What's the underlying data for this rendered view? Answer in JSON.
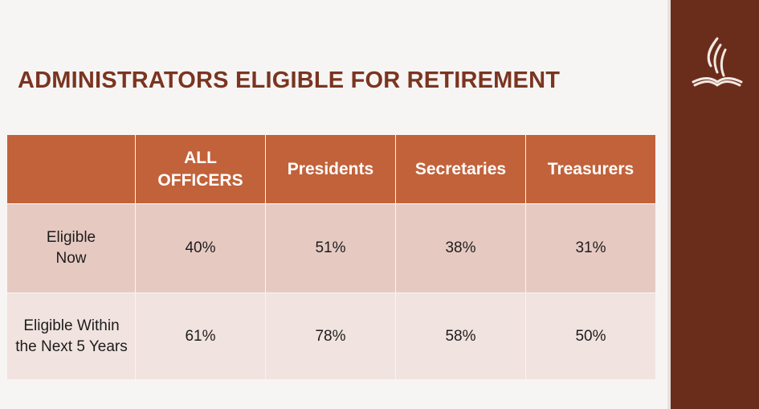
{
  "slide": {
    "title": "ADMINISTRATORS ELIGIBLE FOR RETIREMENT",
    "brand_color": "#6b2d1b",
    "header_color": "#c2623a",
    "row_a_color": "#e6cac2",
    "row_b_color": "#f1e3df",
    "logo_icon": "flame-bible-logo-icon"
  },
  "table": {
    "headers": [
      "",
      "ALL OFFICERS",
      "Presidents",
      "Secretaries",
      "Treasurers"
    ],
    "rows": [
      {
        "label": "Eligible Now",
        "values": [
          "40%",
          "51%",
          "38%",
          "31%"
        ]
      },
      {
        "label": "Eligible Within the Next 5 Years",
        "values": [
          "61%",
          "78%",
          "58%",
          "50%"
        ]
      }
    ]
  }
}
